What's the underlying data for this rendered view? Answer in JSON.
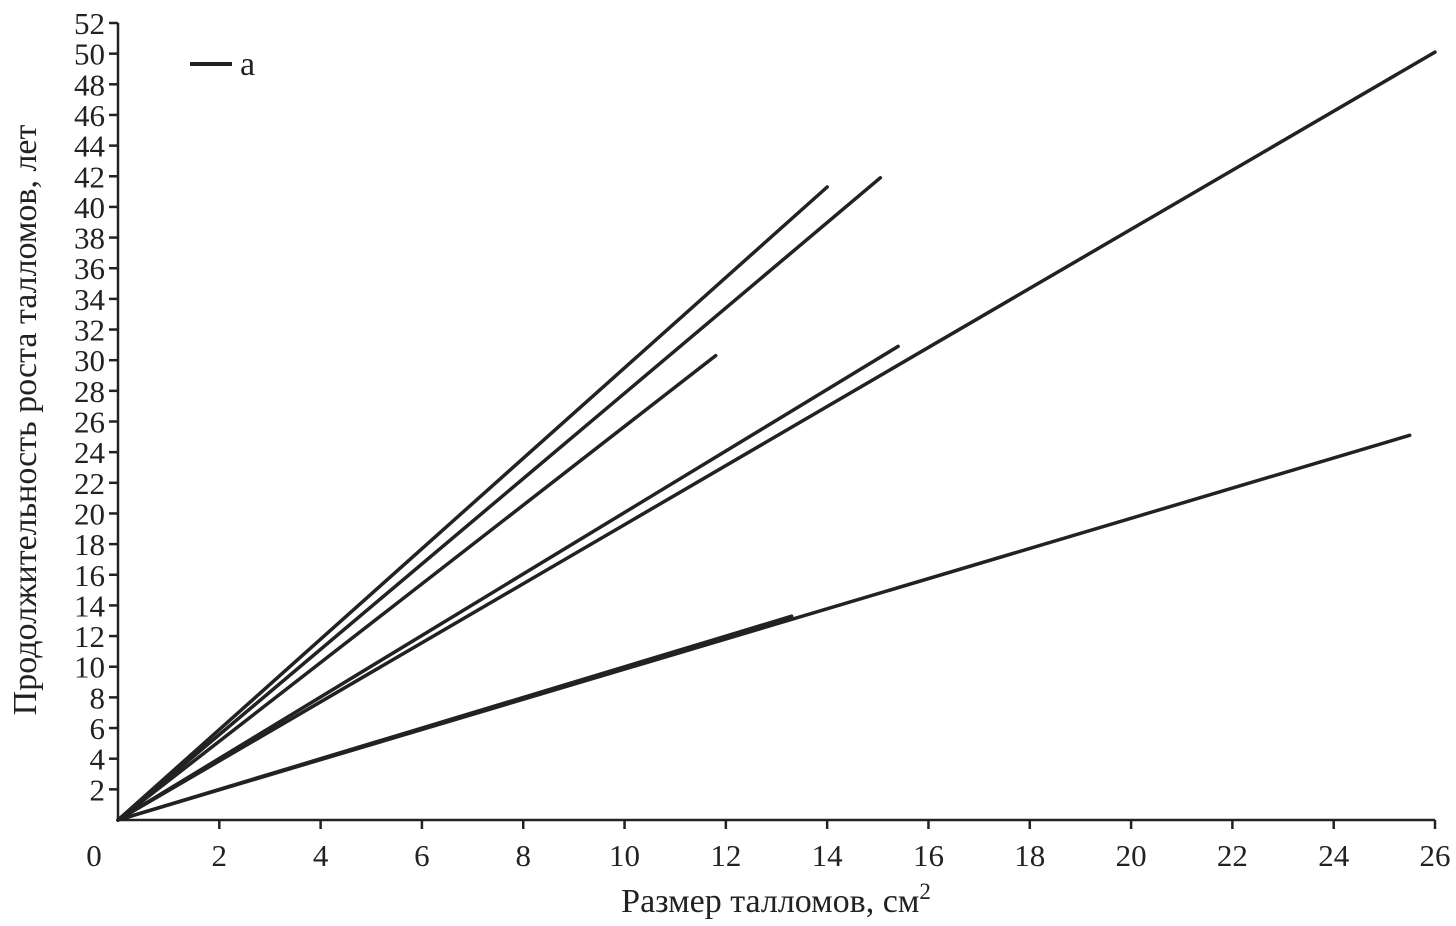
{
  "chart_data": {
    "type": "line",
    "title": "",
    "xlabel": "Размер талломов, см",
    "xlabel_superscript": "2",
    "ylabel": "Продолжительность роста талломов, лет",
    "xlim": [
      0,
      26
    ],
    "ylim": [
      0,
      52
    ],
    "x_ticks": [
      0,
      2,
      4,
      6,
      8,
      10,
      12,
      14,
      16,
      18,
      20,
      22,
      24,
      26
    ],
    "y_ticks": [
      2,
      4,
      6,
      8,
      10,
      12,
      14,
      16,
      18,
      20,
      22,
      24,
      26,
      28,
      30,
      32,
      34,
      36,
      38,
      40,
      42,
      44,
      46,
      48,
      50,
      52
    ],
    "x_origin_label": "0",
    "grid": false,
    "legend": {
      "position": "top-left",
      "entries": [
        {
          "label": "a",
          "color": "#222222"
        }
      ]
    },
    "line_color": "#222222",
    "series": [
      {
        "x": [
          0,
          14.0
        ],
        "y": [
          0,
          41.3
        ]
      },
      {
        "x": [
          0,
          15.05
        ],
        "y": [
          0,
          41.9
        ]
      },
      {
        "x": [
          0,
          11.8
        ],
        "y": [
          0,
          30.3
        ]
      },
      {
        "x": [
          0,
          15.4
        ],
        "y": [
          0,
          30.9
        ]
      },
      {
        "x": [
          0,
          26.0
        ],
        "y": [
          0,
          50.1
        ]
      },
      {
        "x": [
          0,
          13.3
        ],
        "y": [
          0,
          13.3
        ]
      },
      {
        "x": [
          0,
          25.5
        ],
        "y": [
          0,
          25.1
        ]
      }
    ]
  }
}
